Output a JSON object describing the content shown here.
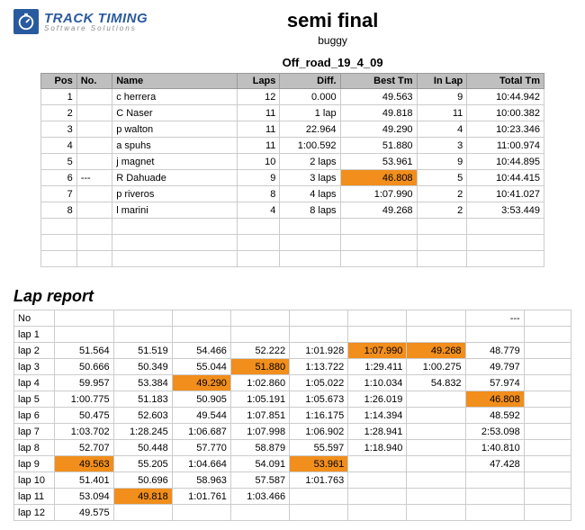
{
  "brand": {
    "name": "TRACK TIMING",
    "tagline": "Software Solutions"
  },
  "title": "semi final",
  "subtitle1": "buggy",
  "subtitle2": "Off_road_19_4_09",
  "colors": {
    "highlight": "#f18e1c",
    "header_bg": "#bfbfbf",
    "border": "#cccccc",
    "brand_blue": "#2a5a9e"
  },
  "results": {
    "columns": [
      "Pos",
      "No.",
      "Name",
      "Laps",
      "Diff.",
      "Best Tm",
      "In Lap",
      "Total Tm"
    ],
    "align": [
      "r",
      "l",
      "l",
      "r",
      "r",
      "r",
      "r",
      "r"
    ],
    "rows": [
      {
        "pos": "1",
        "no": "",
        "name": "c herrera",
        "laps": "12",
        "diff": "0.000",
        "best": "49.563",
        "inlap": "9",
        "total": "10:44.942",
        "hl": false
      },
      {
        "pos": "2",
        "no": "",
        "name": "C Naser",
        "laps": "11",
        "diff": "1 lap",
        "best": "49.818",
        "inlap": "11",
        "total": "10:00.382",
        "hl": false
      },
      {
        "pos": "3",
        "no": "",
        "name": "p walton",
        "laps": "11",
        "diff": "22.964",
        "best": "49.290",
        "inlap": "4",
        "total": "10:23.346",
        "hl": false
      },
      {
        "pos": "4",
        "no": "",
        "name": "a spuhs",
        "laps": "11",
        "diff": "1:00.592",
        "best": "51.880",
        "inlap": "3",
        "total": "11:00.974",
        "hl": false
      },
      {
        "pos": "5",
        "no": "",
        "name": "j magnet",
        "laps": "10",
        "diff": "2 laps",
        "best": "53.961",
        "inlap": "9",
        "total": "10:44.895",
        "hl": false
      },
      {
        "pos": "6",
        "no": "---",
        "name": "R Dahuade",
        "laps": "9",
        "diff": "3 laps",
        "best": "46.808",
        "inlap": "5",
        "total": "10:44.415",
        "hl": true
      },
      {
        "pos": "7",
        "no": "",
        "name": "p riveros",
        "laps": "8",
        "diff": "4 laps",
        "best": "1:07.990",
        "inlap": "2",
        "total": "10:41.027",
        "hl": false
      },
      {
        "pos": "8",
        "no": "",
        "name": "l marini",
        "laps": "4",
        "diff": "8 laps",
        "best": "49.268",
        "inlap": "2",
        "total": "3:53.449",
        "hl": false
      }
    ],
    "blank_rows": 3
  },
  "lap_report": {
    "title": "Lap report",
    "header_cols": [
      "No",
      "",
      "",
      "",
      "",
      "",
      "",
      "",
      "---",
      ""
    ],
    "rows": [
      {
        "label": "lap 1",
        "cells": [
          "",
          "",
          "",
          "",
          "",
          "",
          "",
          "",
          ""
        ],
        "hl": []
      },
      {
        "label": "lap 2",
        "cells": [
          "51.564",
          "51.519",
          "54.466",
          "52.222",
          "1:01.928",
          "1:07.990",
          "49.268",
          "48.779",
          ""
        ],
        "hl": [
          5,
          6
        ]
      },
      {
        "label": "lap 3",
        "cells": [
          "50.666",
          "50.349",
          "55.044",
          "51.880",
          "1:13.722",
          "1:29.411",
          "1:00.275",
          "49.797",
          ""
        ],
        "hl": [
          3
        ]
      },
      {
        "label": "lap 4",
        "cells": [
          "59.957",
          "53.384",
          "49.290",
          "1:02.860",
          "1:05.022",
          "1:10.034",
          "54.832",
          "57.974",
          ""
        ],
        "hl": [
          2
        ]
      },
      {
        "label": "lap 5",
        "cells": [
          "1:00.775",
          "51.183",
          "50.905",
          "1:05.191",
          "1:05.673",
          "1:26.019",
          "",
          "46.808",
          ""
        ],
        "hl": [
          7
        ]
      },
      {
        "label": "lap 6",
        "cells": [
          "50.475",
          "52.603",
          "49.544",
          "1:07.851",
          "1:16.175",
          "1:14.394",
          "",
          "48.592",
          ""
        ],
        "hl": []
      },
      {
        "label": "lap 7",
        "cells": [
          "1:03.702",
          "1:28.245",
          "1:06.687",
          "1:07.998",
          "1:06.902",
          "1:28.941",
          "",
          "2:53.098",
          ""
        ],
        "hl": []
      },
      {
        "label": "lap 8",
        "cells": [
          "52.707",
          "50.448",
          "57.770",
          "58.879",
          "55.597",
          "1:18.940",
          "",
          "1:40.810",
          ""
        ],
        "hl": []
      },
      {
        "label": "lap 9",
        "cells": [
          "49.563",
          "55.205",
          "1:04.664",
          "54.091",
          "53.961",
          "",
          "",
          "47.428",
          ""
        ],
        "hl": [
          0,
          4
        ]
      },
      {
        "label": "lap 10",
        "cells": [
          "51.401",
          "50.696",
          "58.963",
          "57.587",
          "1:01.763",
          "",
          "",
          "",
          ""
        ],
        "hl": []
      },
      {
        "label": "lap 11",
        "cells": [
          "53.094",
          "49.818",
          "1:01.761",
          "1:03.466",
          "",
          "",
          "",
          "",
          ""
        ],
        "hl": [
          1
        ]
      },
      {
        "label": "lap 12",
        "cells": [
          "49.575",
          "",
          "",
          "",
          "",
          "",
          "",
          "",
          ""
        ],
        "hl": []
      }
    ]
  }
}
